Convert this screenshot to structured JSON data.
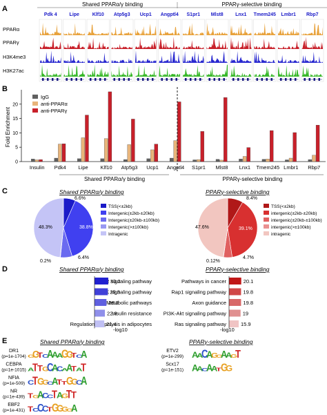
{
  "panels": {
    "A": {
      "letter": "A",
      "group_titles": [
        "Shared PPARα/γ binding",
        "PPARγ-selective binding"
      ],
      "genes_shared": [
        "Pdk 4",
        "Lipe",
        "Klf10",
        "Atp5g3",
        "Ucp1",
        "Angptl4"
      ],
      "genes_selective": [
        "S1pr1",
        "Mlst8",
        "Lnx1",
        "Tmem245",
        "Lmbr1",
        "Rbp7"
      ],
      "track_labels": [
        "PPARα",
        "PPARγ",
        "H3K4me3",
        "H3K27ac"
      ],
      "track_colors": [
        "#e8a23c",
        "#c8202a",
        "#2a2ad0",
        "#39b82a"
      ]
    },
    "B": {
      "letter": "B",
      "ylabel": "Fold Enrichment",
      "legend": [
        "IgG",
        "anti-PPARα",
        "anti-PPARγ"
      ],
      "group_titles": [
        "Shared PPARα/γ binding",
        "PPARγ-selective binding"
      ]
    },
    "C": {
      "letter": "C",
      "shared": {
        "title": "Shared PPARα/γ binding",
        "legend": [
          "TSS(<±2kb)",
          "Intergenic(±2kb-±20kb)",
          "Intergenic(±20kb-±100kb)",
          "Intergenic(>±100kb)",
          "Intragenic"
        ],
        "labels": [
          "6.6%",
          "38.8%",
          "6.4%",
          "0.2%",
          "48.3%"
        ]
      },
      "selective": {
        "title": "PPARγ-selective binding",
        "legend": [
          "TSS(<±2kb)",
          "intergenic(±2kb-±20kb)",
          "intergenic(±20kb-±100kb)",
          "intergenic(>±100kb)",
          "intragenic"
        ],
        "labels": [
          "8.4%",
          "39.1%",
          "4.7%",
          "0.12%",
          "47.6%"
        ]
      }
    },
    "D": {
      "letter": "D",
      "xlabel": "-log10",
      "shared_title": "Shared PPARα/γ binding",
      "selective_title": "PPARγ-selective binding"
    },
    "E": {
      "letter": "E",
      "shared_title": "Shared PPARα/γ binding",
      "selective_title": "PPARγ-selective binding",
      "motifs_shared": [
        {
          "name": "DR1",
          "p": "(p=1e-1704)",
          "seq": "GGTCAAAGGTCA"
        },
        {
          "name": "CEBPA",
          "p": "(p=1e-1015)",
          "seq": "ATTGCACAATAT"
        },
        {
          "name": "NFIA",
          "p": "(p=1e-509)",
          "seq": "CTGGCATTGGCA"
        },
        {
          "name": "NR",
          "p": "(p=1e-439)",
          "seq": "TGACCTAGTT"
        },
        {
          "name": "EBF2",
          "p": "(p=1e-431)",
          "seq": "TCCCTGGGGA"
        }
      ],
      "motifs_selective": [
        {
          "name": "ETV2",
          "p": "(p=1e-299)",
          "seq": "AACAGGAAGT"
        },
        {
          "name": "Scx17",
          "p": "(p=1e-151)",
          "seq": "AACAATGG"
        }
      ],
      "base_colors": {
        "A": "#2e9e2e",
        "C": "#2a50c8",
        "G": "#e8a020",
        "T": "#d02828"
      }
    }
  },
  "chart_data": [
    {
      "type": "bar",
      "title": "",
      "xlabel": "",
      "ylabel": "Fold Enrichment",
      "categories": [
        "Insulin",
        "Pdk4",
        "Lipe",
        "Klf10",
        "Atp5g3",
        "Ucp1",
        "Angptl4",
        "S1pr1",
        "Mlst8",
        "Lnx1",
        "Tmem245",
        "Lmbr1",
        "Rbp7"
      ],
      "series": [
        {
          "name": "IgG",
          "color": "#606060",
          "values": [
            0.9,
            1.2,
            1.0,
            1.0,
            0.7,
            1.0,
            1.2,
            0.6,
            0.8,
            0.9,
            0.8,
            0.6,
            0.7
          ]
        },
        {
          "name": "anti-PPARα",
          "color": "#e8b47a",
          "values": [
            0.6,
            6.1,
            8.3,
            8.0,
            5.9,
            4.1,
            7.3,
            0.7,
            0.5,
            1.8,
            0.9,
            1.2,
            2.2
          ]
        },
        {
          "name": "anti-PPARγ",
          "color": "#c8202a",
          "values": [
            0.7,
            6.2,
            16.2,
            24.3,
            14.8,
            6.1,
            20.8,
            10.5,
            22.3,
            4.9,
            10.8,
            10.1,
            12.7
          ]
        }
      ],
      "ylim": [
        0,
        25
      ],
      "yticks": [
        0,
        5,
        10,
        15,
        20
      ],
      "grid": false,
      "legend_position": "top-left"
    },
    {
      "type": "pie",
      "title": "Shared PPARα/γ binding",
      "categories": [
        "TSS(<±2kb)",
        "Intergenic(±2kb-±20kb)",
        "Intergenic(±20kb-±100kb)",
        "Intergenic(>±100kb)",
        "Intragenic"
      ],
      "values": [
        6.6,
        38.8,
        6.4,
        0.2,
        48.3
      ],
      "colors": [
        "#1a1ac8",
        "#4040f0",
        "#6a6af0",
        "#9898f2",
        "#c4c4f6"
      ],
      "legend_position": "right"
    },
    {
      "type": "pie",
      "title": "PPARγ-selective binding",
      "categories": [
        "TSS(<±2kb)",
        "intergenic(±2kb-±20kb)",
        "intergenic(±20kb-±100kb)",
        "intergenic(>±100kb)",
        "intragenic"
      ],
      "values": [
        8.4,
        39.1,
        4.7,
        0.12,
        47.6
      ],
      "colors": [
        "#b01818",
        "#d83030",
        "#e06060",
        "#ea9090",
        "#f2c6c0"
      ],
      "legend_position": "right"
    },
    {
      "type": "bar",
      "orientation": "horizontal",
      "title": "Shared PPARα/γ binding",
      "xlabel": "-log10",
      "categories": [
        "PPAR signaling pathway",
        "AMPK signaling pathway",
        "Metabolic pathways",
        "Insulin resistance",
        "Regulation of lipolysis in adipocytes"
      ],
      "values": [
        30.2,
        29.3,
        26.2,
        22.8,
        21.4
      ],
      "colors": [
        "#2020d0",
        "#4040d8",
        "#6060e0",
        "#9090ea",
        "#c0c0f4"
      ]
    },
    {
      "type": "bar",
      "orientation": "horizontal",
      "title": "PPARγ-selective binding",
      "xlabel": "-log10",
      "categories": [
        "Pathways in cancer",
        "Rap1 signaling pathway",
        "Axon guidance",
        "PI3K-Akt signaling pathway",
        "Ras signaling pathway"
      ],
      "values": [
        20.1,
        19.8,
        19.8,
        19.0,
        15.9
      ],
      "colors": [
        "#c01818",
        "#d04848",
        "#d86868",
        "#e09090",
        "#f0c4c4"
      ]
    }
  ]
}
